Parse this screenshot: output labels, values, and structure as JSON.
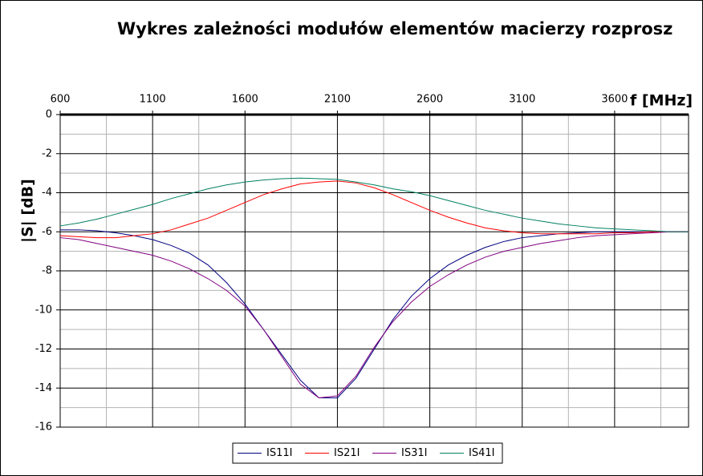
{
  "chart_data": {
    "type": "line",
    "title": "Wykres zależności modułów elementów macierzy rozprosz",
    "x_label": "f [MHz]",
    "y_label": "|S| [dB]",
    "x": [
      600,
      700,
      800,
      900,
      1000,
      1100,
      1200,
      1300,
      1400,
      1500,
      1600,
      1700,
      1800,
      1900,
      2000,
      2100,
      2200,
      2300,
      2400,
      2500,
      2600,
      2700,
      2800,
      2900,
      3000,
      3100,
      3200,
      3300,
      3400,
      3500,
      3600,
      3700,
      3800,
      3900,
      4000
    ],
    "series": [
      {
        "name": "IS11I",
        "color": "#000080",
        "values": [
          -5.9,
          -5.9,
          -5.95,
          -6.05,
          -6.2,
          -6.4,
          -6.7,
          -7.1,
          -7.7,
          -8.6,
          -9.7,
          -11.0,
          -12.3,
          -13.6,
          -14.5,
          -14.5,
          -13.5,
          -12.0,
          -10.5,
          -9.3,
          -8.4,
          -7.7,
          -7.2,
          -6.8,
          -6.5,
          -6.3,
          -6.2,
          -6.1,
          -6.05,
          -6.0,
          -6.0,
          -6.0,
          -6.0,
          -6.0,
          -6.0
        ]
      },
      {
        "name": "IS21I",
        "color": "#ff0000",
        "values": [
          -6.2,
          -6.25,
          -6.3,
          -6.3,
          -6.2,
          -6.1,
          -5.9,
          -5.6,
          -5.3,
          -4.9,
          -4.5,
          -4.1,
          -3.8,
          -3.55,
          -3.45,
          -3.4,
          -3.5,
          -3.75,
          -4.1,
          -4.5,
          -4.9,
          -5.25,
          -5.55,
          -5.8,
          -5.95,
          -6.05,
          -6.1,
          -6.1,
          -6.1,
          -6.1,
          -6.05,
          -6.05,
          -6.0,
          -6.0,
          -6.0
        ]
      },
      {
        "name": "IS31I",
        "color": "#800080",
        "values": [
          -6.3,
          -6.4,
          -6.6,
          -6.8,
          -7.0,
          -7.2,
          -7.5,
          -7.9,
          -8.4,
          -9.0,
          -9.8,
          -11.0,
          -12.4,
          -13.8,
          -14.5,
          -14.4,
          -13.4,
          -11.9,
          -10.6,
          -9.6,
          -8.8,
          -8.2,
          -7.7,
          -7.3,
          -7.0,
          -6.8,
          -6.6,
          -6.45,
          -6.3,
          -6.2,
          -6.15,
          -6.1,
          -6.05,
          -6.0,
          -6.0
        ]
      },
      {
        "name": "IS41I",
        "color": "#008060",
        "values": [
          -5.7,
          -5.55,
          -5.35,
          -5.1,
          -4.85,
          -4.6,
          -4.3,
          -4.05,
          -3.8,
          -3.6,
          -3.45,
          -3.35,
          -3.28,
          -3.25,
          -3.28,
          -3.32,
          -3.45,
          -3.6,
          -3.8,
          -3.95,
          -4.15,
          -4.4,
          -4.65,
          -4.9,
          -5.1,
          -5.3,
          -5.45,
          -5.6,
          -5.7,
          -5.8,
          -5.85,
          -5.9,
          -5.95,
          -6.0,
          -6.0
        ]
      }
    ],
    "xlim": [
      600,
      4000
    ],
    "ylim": [
      -16,
      0
    ],
    "xticks": [
      600,
      1100,
      1600,
      2100,
      2600,
      3100,
      3600
    ],
    "yticks": [
      0,
      -2,
      -4,
      -6,
      -8,
      -10,
      -12,
      -14,
      -16
    ],
    "xgrid_minor": [
      850,
      1350,
      1850,
      2350,
      2850,
      3350,
      3850
    ],
    "ygrid_minor": [
      -1,
      -3,
      -5,
      -7,
      -9,
      -11,
      -13,
      -15
    ],
    "grid": true,
    "legend": "bottom"
  }
}
